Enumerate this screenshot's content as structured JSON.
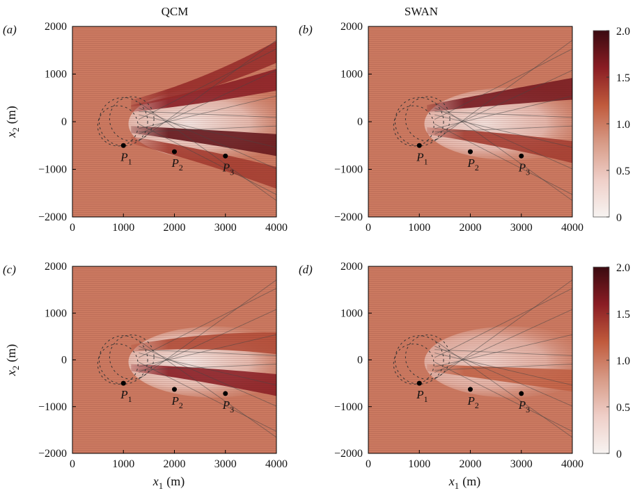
{
  "chart_data": {
    "type": "heatmap",
    "column_titles": [
      "QCM",
      "SWAN"
    ],
    "xlabel": "x",
    "xlabel_sub": "1",
    "xlabel_unit": "(m)",
    "ylabel": "x",
    "ylabel_sub": "2",
    "ylabel_unit": "(m)",
    "xlim": [
      0,
      4000
    ],
    "ylim": [
      -2000,
      2000
    ],
    "xticks": [
      0,
      1000,
      2000,
      3000,
      4000
    ],
    "yticks": [
      -2000,
      -1000,
      0,
      1000,
      2000
    ],
    "xtick_labels": [
      "0",
      "1000",
      "2000",
      "3000",
      "4000"
    ],
    "ytick_labels": [
      "−2000",
      "−1000",
      "0",
      "1000",
      "2000"
    ],
    "colorbar": {
      "range": [
        0,
        2
      ],
      "ticks": [
        "0",
        "0.5",
        "1.0",
        "1.5",
        "2.0"
      ],
      "tick_values": [
        0,
        0.5,
        1.0,
        1.5,
        2.0
      ],
      "colors": [
        "#f7f3f1",
        "#efcfc8",
        "#d79a86",
        "#c05a3c",
        "#8a1d24",
        "#3a0a10"
      ]
    },
    "background_value": 1.0,
    "points": [
      {
        "label": "P",
        "sub": "1",
        "x": 1000,
        "y": -500
      },
      {
        "label": "P",
        "sub": "2",
        "x": 2000,
        "y": -630
      },
      {
        "label": "P",
        "sub": "3",
        "x": 3000,
        "y": -720
      }
    ],
    "scatterer": {
      "center_x": 1000,
      "center_y": 0,
      "radius": 500
    },
    "panels": [
      {
        "label": "(a)",
        "features": [
          {
            "kind": "shadow",
            "peak": 0.1,
            "x0": 1300,
            "x1": 4000
          },
          {
            "kind": "band",
            "value": 1.6,
            "y_start": 500,
            "y_end": 900
          },
          {
            "kind": "band",
            "value": 1.8,
            "y_start": -300,
            "y_end": -500
          },
          {
            "kind": "band",
            "value": 1.5,
            "y_start": 700,
            "y_end": 1500
          },
          {
            "kind": "band",
            "value": 1.4,
            "y_start": -700,
            "y_end": -1200
          }
        ]
      },
      {
        "label": "(b)",
        "features": [
          {
            "kind": "shadow",
            "peak": 0.15,
            "x0": 1300,
            "x1": 4000
          },
          {
            "kind": "band",
            "value": 1.7,
            "y_start": 500,
            "y_end": 700
          },
          {
            "kind": "band",
            "value": 1.4,
            "y_start": -350,
            "y_end": -650
          }
        ]
      },
      {
        "label": "(c)",
        "features": [
          {
            "kind": "shadow",
            "peak": 0.1,
            "x0": 1300,
            "x1": 4000
          },
          {
            "kind": "band",
            "value": 1.6,
            "y_start": -300,
            "y_end": -550
          },
          {
            "kind": "band",
            "value": 1.3,
            "y_start": 450,
            "y_end": 350
          }
        ]
      },
      {
        "label": "(d)",
        "features": [
          {
            "kind": "shadow",
            "peak": 0.35,
            "x0": 1300,
            "x1": 4000
          },
          {
            "kind": "band",
            "value": 1.15,
            "y_start": -300,
            "y_end": -450
          }
        ]
      }
    ]
  }
}
